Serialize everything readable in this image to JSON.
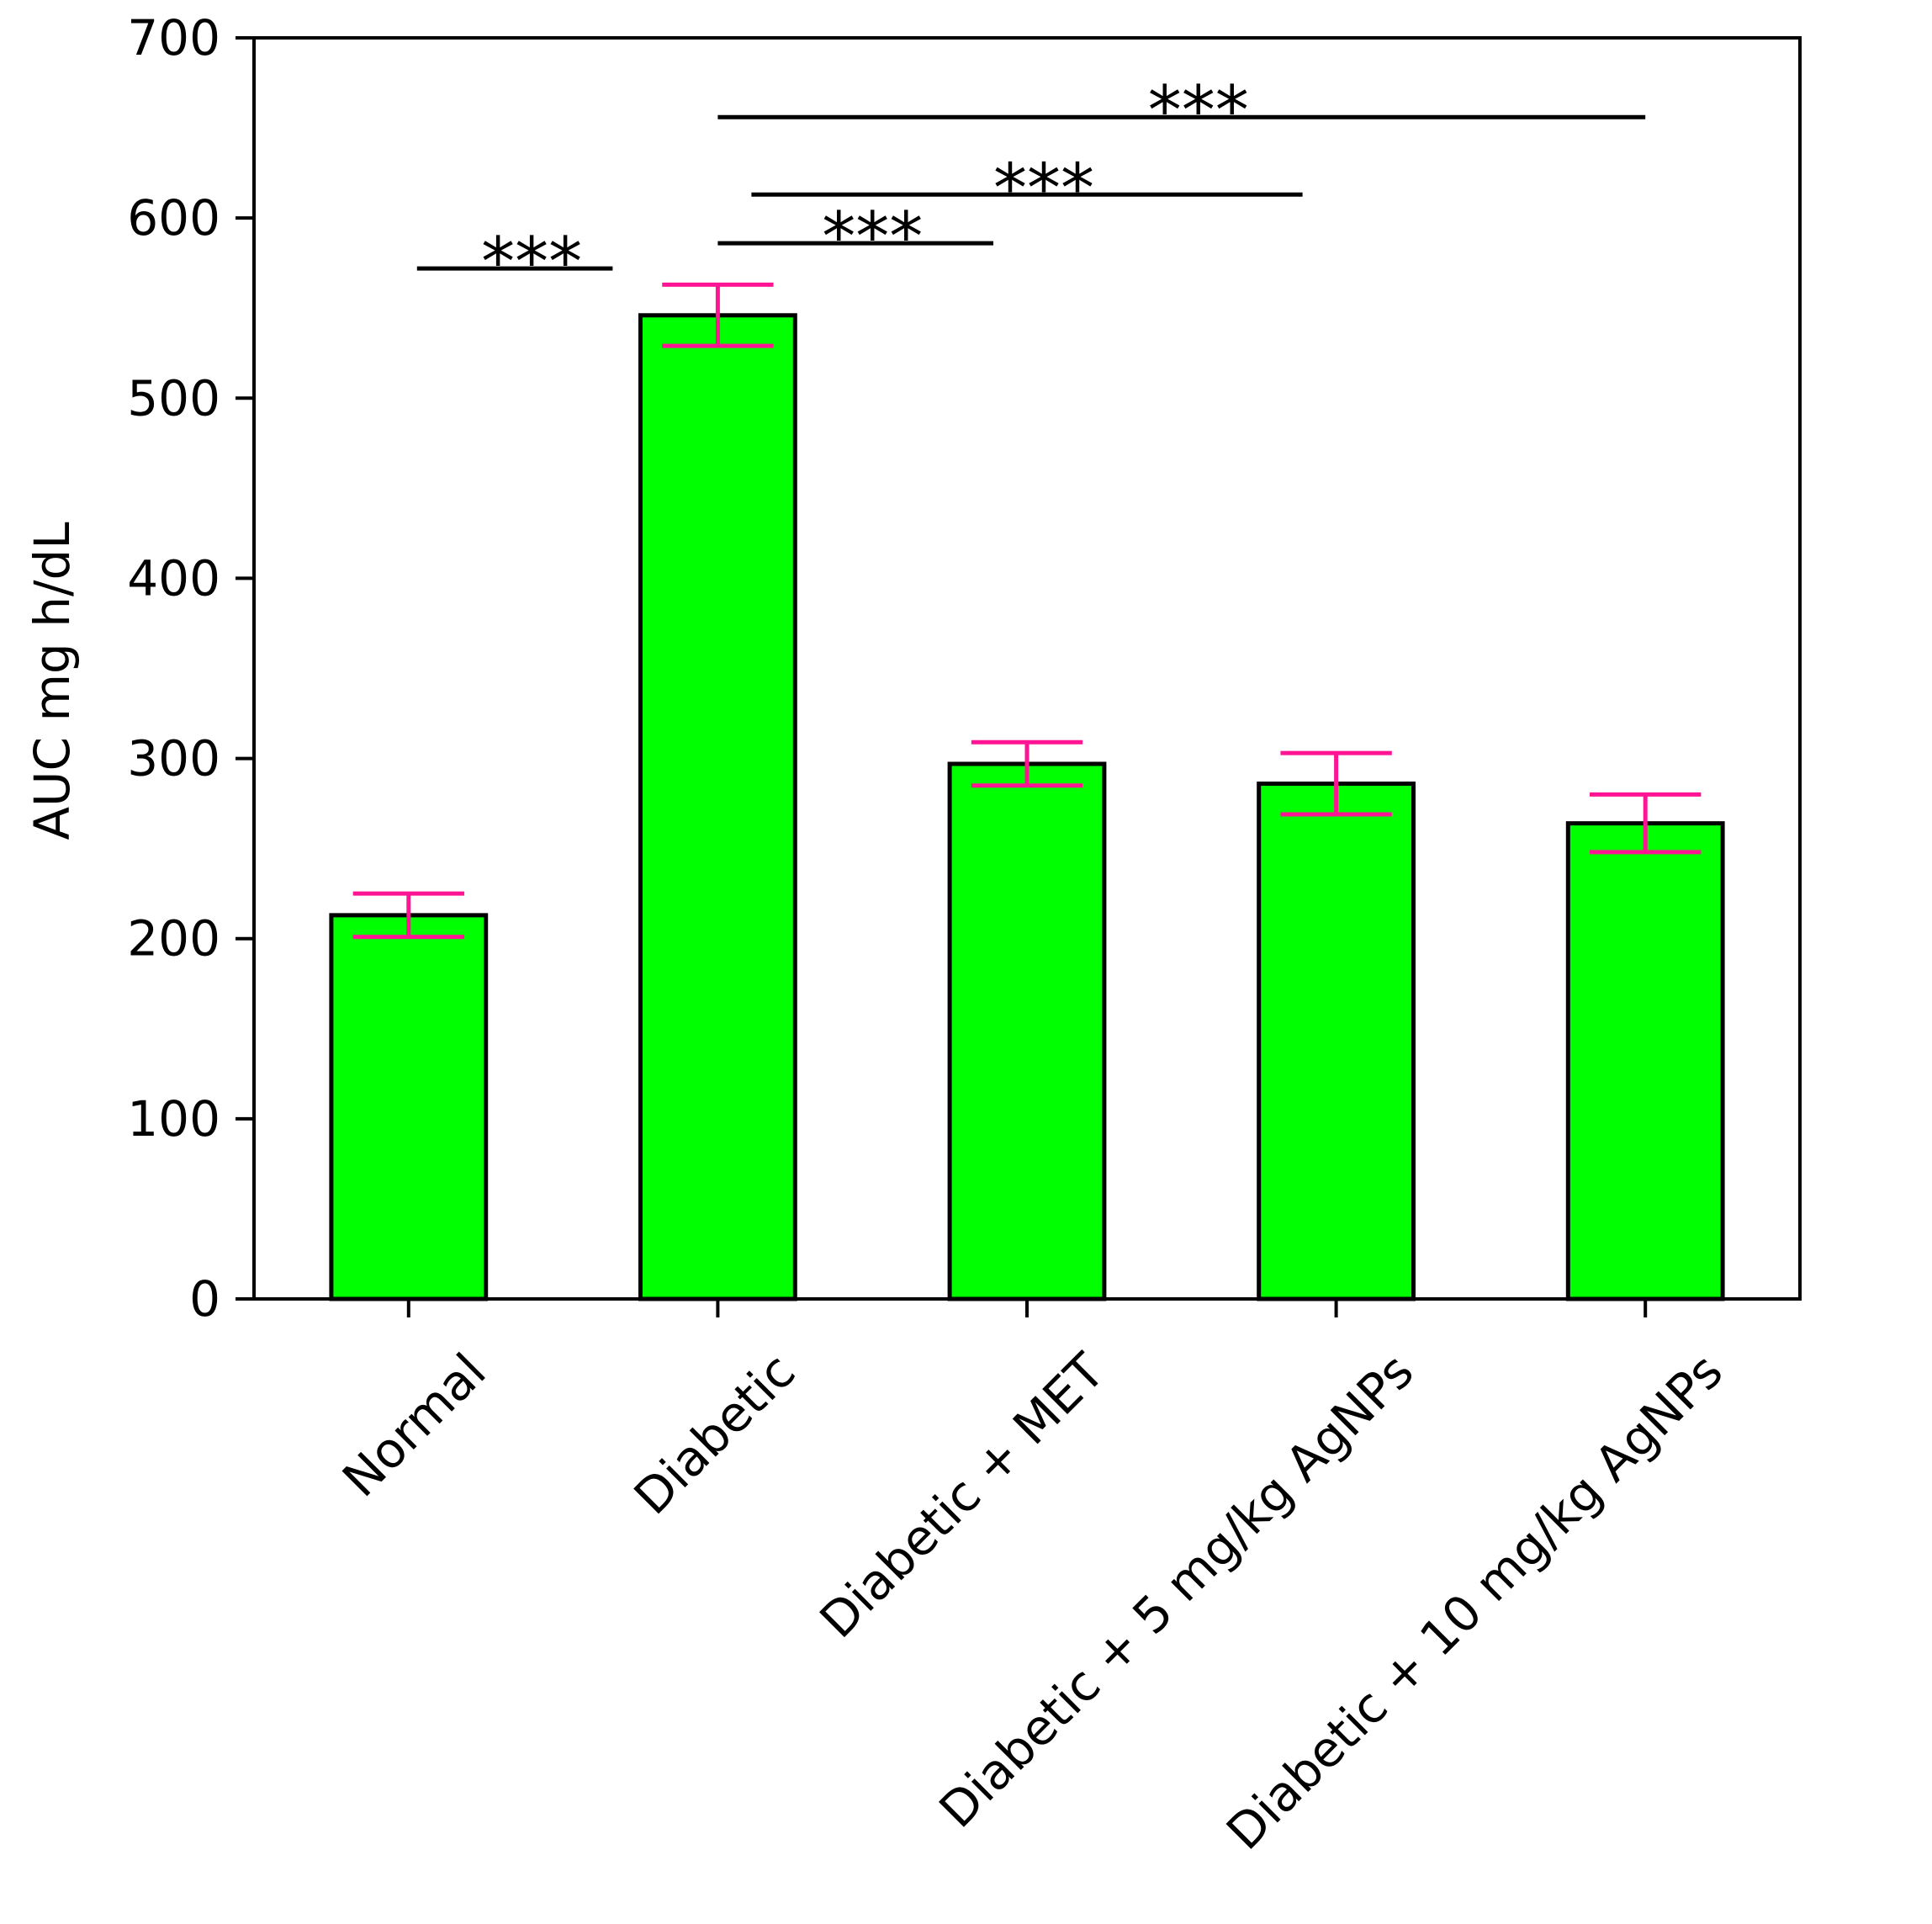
{
  "chart_data": {
    "type": "bar",
    "title": "",
    "xlabel": "",
    "ylabel": "AUC mg h/dL",
    "ylim": [
      0,
      700
    ],
    "yticks": [
      0,
      100,
      200,
      300,
      400,
      500,
      600,
      700
    ],
    "grid": false,
    "legend": "none",
    "categories": [
      "Normal",
      "Diabetic",
      "Diabetic + MET",
      "Diabetic + 5 mg/kg AgNPs",
      "Diabetic + 10 mg/kg AgNPs"
    ],
    "values": [
      213,
      546,
      297,
      286,
      264
    ],
    "errors": [
      12,
      17,
      12,
      17,
      16
    ],
    "bar_color": "#00ff00",
    "error_color": "#ff1493",
    "annotations": [
      {
        "from": "Normal",
        "to": "Diabetic",
        "y": 572,
        "text": "***"
      },
      {
        "from": "Diabetic",
        "to": "Diabetic + MET",
        "y": 586,
        "text": "***"
      },
      {
        "from": "Diabetic",
        "to": "Diabetic + 5 mg/kg AgNPs",
        "y": 613,
        "text": "***"
      },
      {
        "from": "Diabetic",
        "to": "Diabetic + 10 mg/kg AgNPs",
        "y": 656,
        "text": "***"
      }
    ]
  }
}
